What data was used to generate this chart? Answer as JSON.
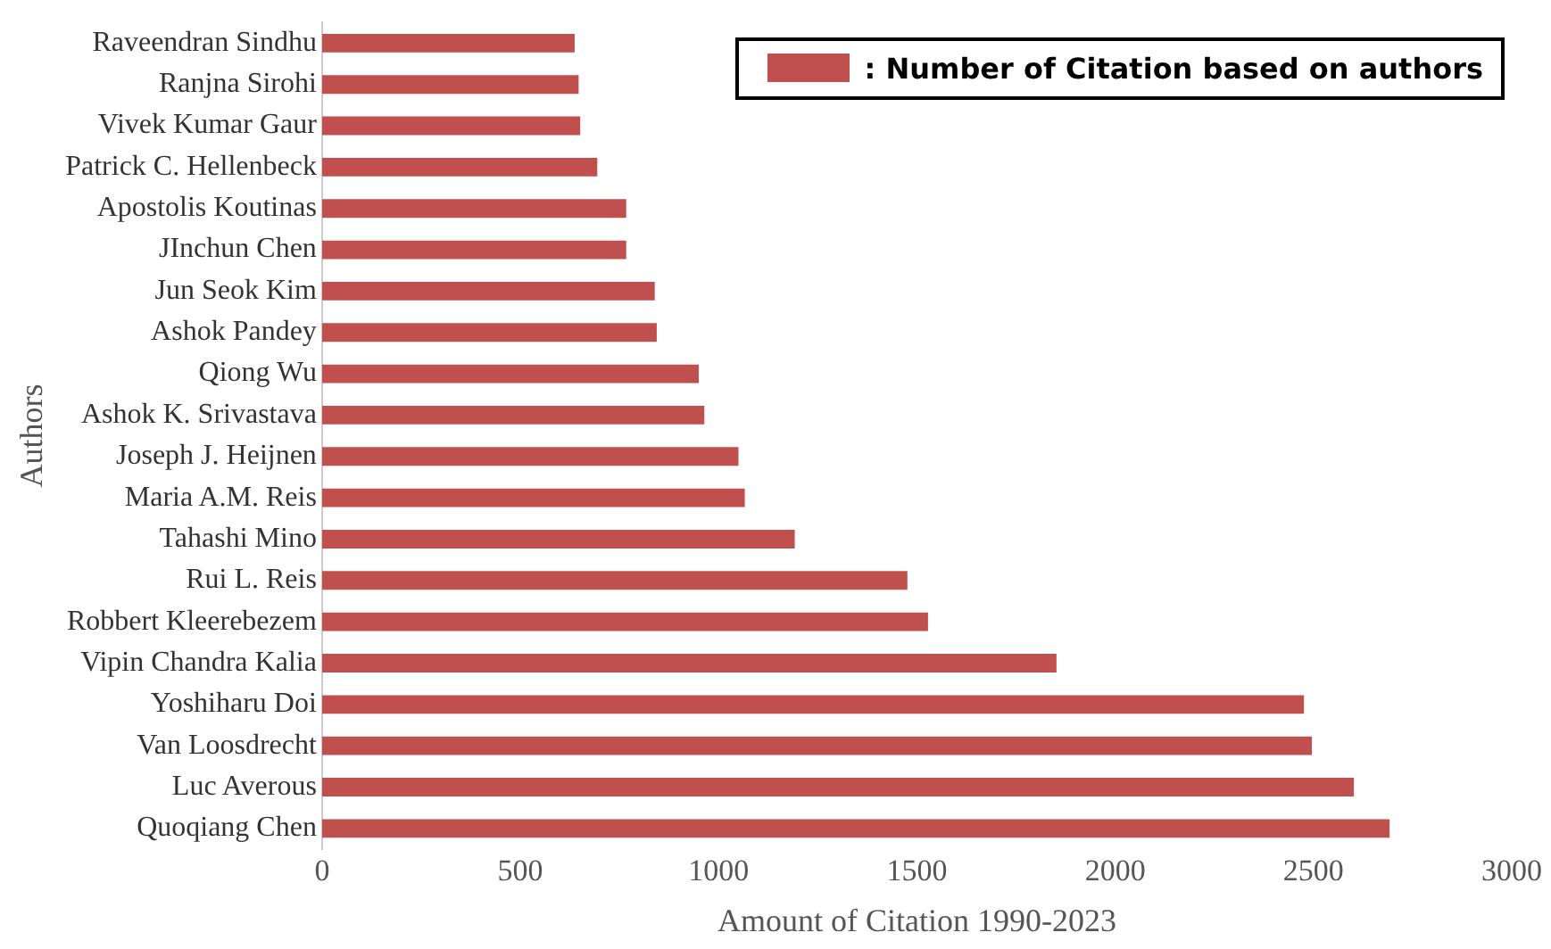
{
  "chart_data": {
    "type": "bar",
    "orientation": "horizontal",
    "xlabel": "Amount of Citation 1990-2023",
    "ylabel": "Authors",
    "categories": [
      "Raveendran Sindhu",
      "Ranjna Sirohi",
      "Vivek Kumar Gaur",
      "Patrick C. Hellenbeck",
      "Apostolis Koutinas",
      "JInchun Chen",
      "Jun Seok Kim",
      "Ashok Pandey",
      "Qiong Wu",
      "Ashok K. Srivastava",
      "Joseph J. Heijnen",
      "Maria A.M. Reis",
      "Tahashi Mino",
      "Rui L. Reis",
      "Robbert Kleerebezem",
      "Vipin Chandra Kalia",
      "Yoshiharu Doi",
      "Van Loosdrecht",
      "Luc Averous",
      "Quoqiang Chen"
    ],
    "series": [
      {
        "name": ": Number of Citation based on authors",
        "color": "#c0504d",
        "values": [
          637,
          647,
          651,
          694,
          767,
          767,
          839,
          844,
          950,
          964,
          1050,
          1066,
          1192,
          1476,
          1528,
          1852,
          2476,
          2496,
          2602,
          2692
        ]
      }
    ],
    "xlim": [
      0,
      3000
    ],
    "xticks": [
      0,
      500,
      1000,
      1500,
      2000,
      2500,
      3000
    ],
    "grid": false,
    "legend": "top right"
  }
}
